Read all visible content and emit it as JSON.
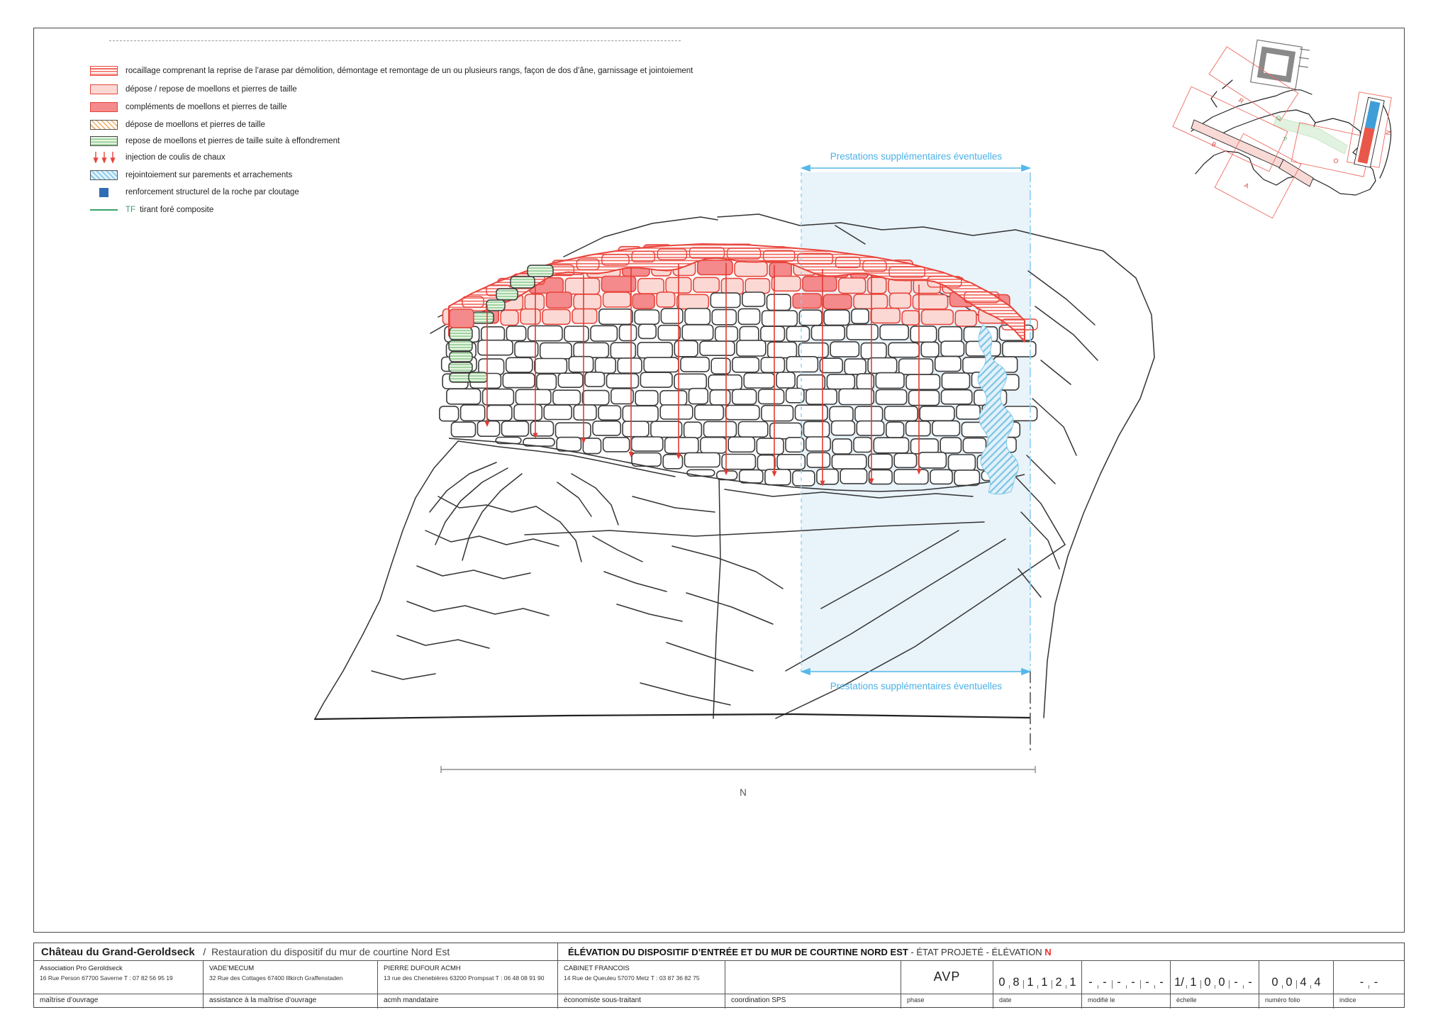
{
  "colors": {
    "accent_red": "#e8453c",
    "stripe_red": "#f2685e",
    "pink": "#fbd8d4",
    "salmon": "#f48a8c",
    "green_fill": "#e7f5e3",
    "green_line": "#8cc98e",
    "orange_hatch": "#f0a95c",
    "blue_hatch": "#6fc4e8",
    "zone_blue": "#54b8e8",
    "zone_wash": "#e9f3fa",
    "nail_blue": "#2f6db5",
    "tf_green": "#3aa06b",
    "title_red": "#e8322d",
    "stone_line": "#3c3c3c"
  },
  "legend": {
    "tf_prefix": "TF",
    "items": [
      {
        "label": "rocaillage comprenant la reprise de l’arase par démolition, démontage et remontage de un ou plusieurs rangs, façon de dos d’âne, garnissage et jointoiement"
      },
      {
        "label": "dépose / repose de moellons et pierres de taille"
      },
      {
        "label": "compléments de moellons et pierres de taille"
      },
      {
        "label": "dépose de moellons et pierres de taille"
      },
      {
        "label": "repose de moellons et pierres de taille suite à effondrement"
      },
      {
        "label": "injection de coulis de chaux"
      },
      {
        "label": "rejointoiement sur parements et arrachements"
      },
      {
        "label": "renforcement structurel de la roche par cloutage"
      },
      {
        "label": "tirant foré composite"
      }
    ]
  },
  "zone": {
    "label_top": "Prestations supplémentaires éventuelles",
    "label_bottom": "Prestations supplémentaires éventuelles"
  },
  "drawing": {
    "north_label": "N"
  },
  "site_plan": {
    "labels": {
      "r": "R",
      "b": "B",
      "a": "A",
      "o": "O",
      "q": "Q",
      "p": "P",
      "n": "N"
    }
  },
  "title_block": {
    "project_title": "Château du Grand-Geroldseck",
    "project_sep": "/",
    "project_subtitle": "Restauration du dispositif du mur de courtine Nord Est",
    "sheet_title_bold": "ÉLÉVATION DU DISPOSITIF D’ENTRÉE ET DU MUR DE COURTINE NORD EST",
    "sheet_title_rest": " - ÉTAT PROJETÉ - ÉLÉVATION ",
    "sheet_title_letter": "N",
    "companies": [
      {
        "name": "Association Pro Geroldseck",
        "address": "16 Rue Person    67700 Saverne     T : 07 82 56 95 19",
        "role": "maîtrise d’ouvrage"
      },
      {
        "name": "VADE’MECUM",
        "address": "32 Rue des Cottages   67400 Illkirch Graffenstaden",
        "role": "assistance à la maîtrise d’ouvrage"
      },
      {
        "name": "PIERRE DUFOUR ACMH",
        "address": "13 rue des Chenebières   63200 Prompsat   T : 06 48 08 91 90",
        "role": "acmh mandataire"
      },
      {
        "name": "CABINET FRANCOIS",
        "address": "14 Rue de Queuleu       57070 Metz     T : 03 87 36 82 75",
        "role": "économiste sous-traitant"
      },
      {
        "name": "",
        "address": "",
        "role": "coordination SPS"
      }
    ],
    "phase": {
      "value": "AVP",
      "label": "phase"
    },
    "date": {
      "digits": [
        "0",
        "8",
        "1",
        "1",
        "2",
        "1"
      ],
      "label": "date"
    },
    "modified": {
      "digits": [
        "-",
        "-",
        "-",
        "-",
        "-",
        "-"
      ],
      "label": "modifié le"
    },
    "scale": {
      "digits": [
        "1/",
        "1",
        "0",
        "0",
        "-",
        "-"
      ],
      "label": "échelle"
    },
    "folio": {
      "digits": [
        "0",
        "0",
        "4",
        "4"
      ],
      "label": "numéro folio"
    },
    "index": {
      "digits": [
        "-",
        "-"
      ],
      "label": "indice"
    }
  }
}
